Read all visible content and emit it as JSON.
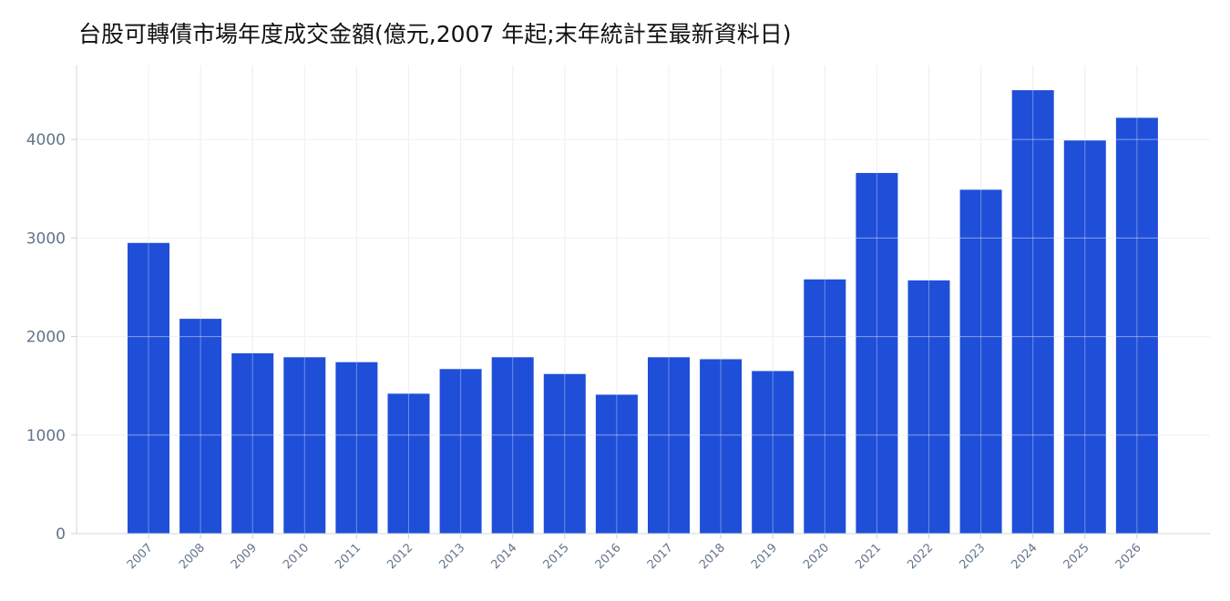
{
  "chart_data": {
    "type": "bar",
    "title": "台股可轉債市場年度成交金額(億元,2007 年起;末年統計至最新資料日)",
    "xlabel": "",
    "ylabel": "",
    "categories": [
      "2007",
      "2008",
      "2009",
      "2010",
      "2011",
      "2012",
      "2013",
      "2014",
      "2015",
      "2016",
      "2017",
      "2018",
      "2019",
      "2020",
      "2021",
      "2022",
      "2023",
      "2024",
      "2025",
      "2026"
    ],
    "values": [
      2950,
      2180,
      1830,
      1790,
      1740,
      1420,
      1670,
      1790,
      1620,
      1410,
      1790,
      1770,
      1650,
      2580,
      3660,
      2570,
      3490,
      4500,
      3990,
      4220
    ],
    "yticks": [
      0,
      1000,
      2000,
      3000,
      4000
    ],
    "ylim": [
      0,
      4750
    ],
    "grid": true,
    "legend": "none",
    "colors": {
      "bar": "#1f4fd8",
      "grid": "#e5e7eb",
      "axis": "#d1d5db",
      "tick_text": "#64748b",
      "title_text": "#111111"
    }
  }
}
